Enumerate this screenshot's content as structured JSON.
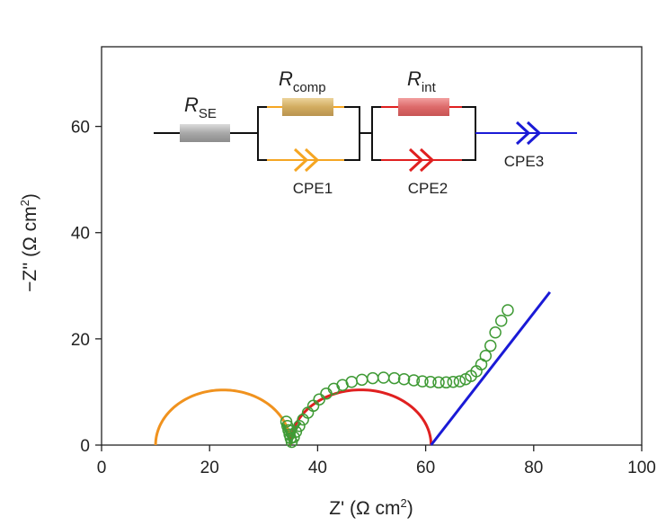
{
  "chart_data": {
    "type": "scatter",
    "xlabel": {
      "main": "Z' (Ω cm",
      "sup": "2",
      "end": ")"
    },
    "ylabel": {
      "main": "−Z'' (Ω cm",
      "sup": "2",
      "end": ")"
    },
    "xlim": [
      0,
      100
    ],
    "ylim": [
      0,
      75
    ],
    "xticks": [
      0,
      20,
      40,
      60,
      80,
      100
    ],
    "yticks": [
      0,
      20,
      40,
      60
    ],
    "grid": false,
    "series": [
      {
        "kind": "measured-points",
        "color": "#3f9a35",
        "marker": "open-circle",
        "points": [
          [
            34.2,
            4.4
          ],
          [
            34.4,
            3.6
          ],
          [
            34.6,
            2.8
          ],
          [
            34.8,
            2.0
          ],
          [
            35.0,
            1.3
          ],
          [
            35.2,
            0.6
          ],
          [
            35.6,
            1.5
          ],
          [
            36.0,
            2.5
          ],
          [
            36.6,
            3.6
          ],
          [
            37.3,
            4.8
          ],
          [
            38.2,
            6.1
          ],
          [
            39.2,
            7.4
          ],
          [
            40.3,
            8.6
          ],
          [
            41.6,
            9.7
          ],
          [
            43.0,
            10.6
          ],
          [
            44.6,
            11.3
          ],
          [
            46.3,
            11.9
          ],
          [
            48.2,
            12.3
          ],
          [
            50.2,
            12.6
          ],
          [
            52.2,
            12.7
          ],
          [
            54.2,
            12.6
          ],
          [
            56.0,
            12.4
          ],
          [
            57.8,
            12.2
          ],
          [
            59.4,
            12.0
          ],
          [
            60.9,
            11.9
          ],
          [
            62.4,
            11.8
          ],
          [
            63.8,
            11.8
          ],
          [
            65.1,
            11.9
          ],
          [
            66.3,
            12.0
          ],
          [
            67.4,
            12.4
          ],
          [
            68.4,
            13.0
          ],
          [
            69.4,
            13.9
          ],
          [
            70.3,
            15.2
          ],
          [
            71.1,
            16.8
          ],
          [
            72.0,
            18.7
          ],
          [
            72.9,
            21.2
          ],
          [
            74.0,
            23.4
          ],
          [
            75.2,
            25.4
          ]
        ]
      },
      {
        "kind": "fit-arc",
        "color": "#f0921e",
        "center": [
          22.5,
          0
        ],
        "radius": 12.5,
        "yscale": 0.83
      },
      {
        "kind": "fit-arc",
        "color": "#e02020",
        "center": [
          48.0,
          0
        ],
        "radius": 13.0,
        "yscale": 0.8
      },
      {
        "kind": "fit-line",
        "color": "#1a1ad6",
        "points": [
          [
            61.0,
            0
          ],
          [
            83.0,
            28.8
          ]
        ]
      },
      {
        "kind": "fit-tail",
        "color": "#3f9a35",
        "points": [
          [
            33.6,
            4.0
          ],
          [
            34.2,
            2.6
          ],
          [
            34.6,
            1.4
          ],
          [
            35.0,
            0.3
          ],
          [
            35.4,
            1.6
          ],
          [
            36.0,
            3.0
          ],
          [
            36.8,
            4.3
          ]
        ]
      }
    ],
    "circuit": {
      "resistors": [
        {
          "label": "R",
          "sub": "SE",
          "color": "#b8b8b8"
        },
        {
          "label": "R",
          "sub": "comp",
          "color": "#d7b46a"
        },
        {
          "label": "R",
          "sub": "int",
          "color": "#e07070"
        }
      ],
      "cpes": [
        {
          "label": "CPE1",
          "color": "#f5a623"
        },
        {
          "label": "CPE2",
          "color": "#e02020"
        },
        {
          "label": "CPE3",
          "color": "#1a1ad6"
        }
      ]
    }
  }
}
